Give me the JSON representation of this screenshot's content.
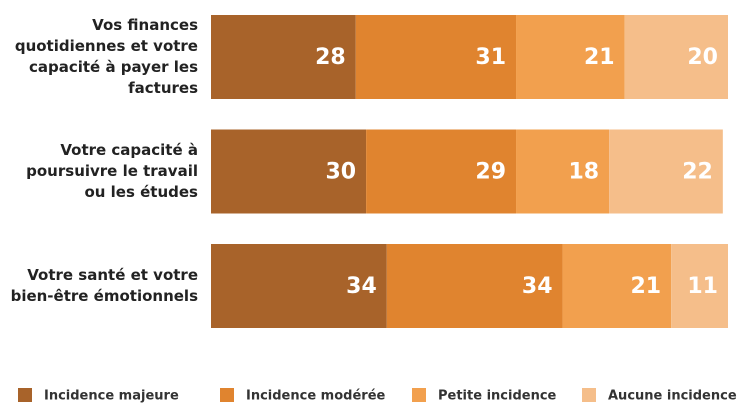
{
  "chart_data": {
    "type": "stacked-bar",
    "orientation": "horizontal",
    "categories": [
      "Vos finances quotidiennes et votre capacité à payer les factures",
      "Votre capacité à poursuivre le travail ou les études",
      "Votre santé et votre bien-être émotionnels"
    ],
    "series": [
      {
        "name": "Incidence majeure",
        "color": "#a8632a",
        "values": [
          28,
          30,
          34
        ]
      },
      {
        "name": "Incidence modérée",
        "color": "#e0842f",
        "values": [
          31,
          29,
          34
        ]
      },
      {
        "name": "Petite incidence",
        "color": "#f2a04e",
        "values": [
          21,
          18,
          21
        ]
      },
      {
        "name": "Aucune incidence",
        "color": "#f5be8a",
        "values": [
          20,
          22,
          11
        ]
      }
    ],
    "xlim": [
      0,
      100
    ],
    "legend": "bottom"
  }
}
